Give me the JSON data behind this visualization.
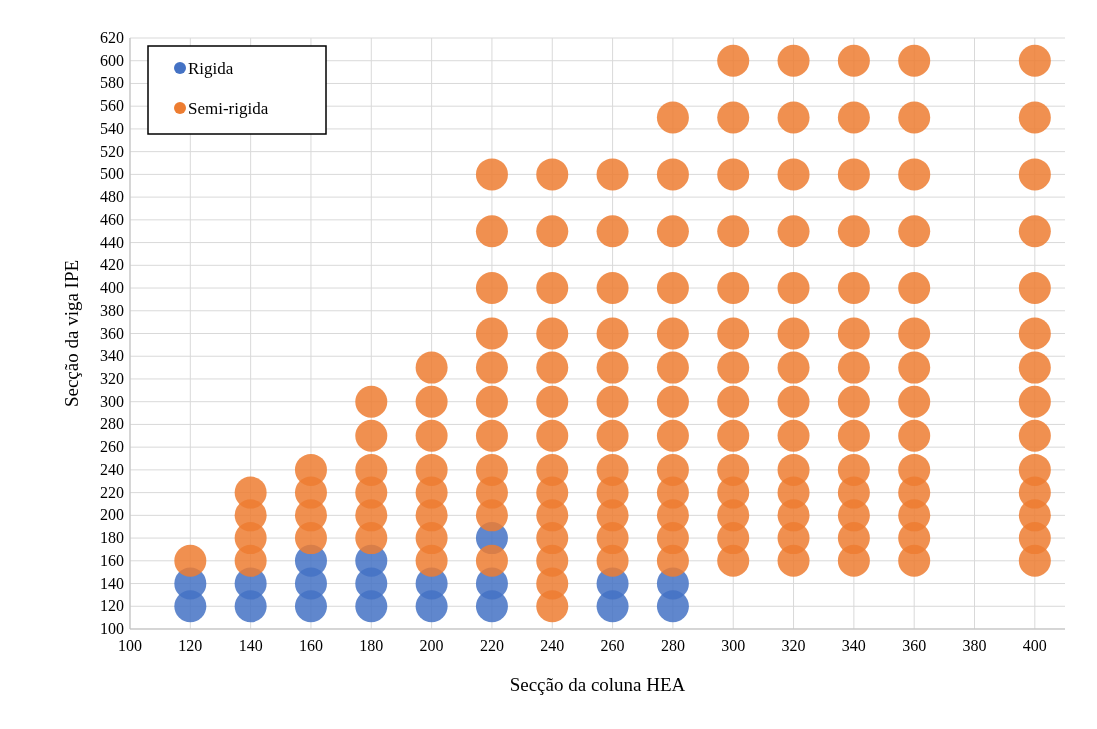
{
  "chart_data": {
    "type": "scatter",
    "xlabel": "Secção da coluna HEA",
    "ylabel": "Secção da viga IPE",
    "xlim": [
      100,
      410
    ],
    "xticks": [
      100,
      120,
      140,
      160,
      180,
      200,
      220,
      240,
      260,
      280,
      300,
      320,
      340,
      360,
      380,
      400
    ],
    "ylim": [
      100,
      620
    ],
    "yticks": [
      100,
      120,
      140,
      160,
      180,
      200,
      220,
      240,
      260,
      280,
      300,
      320,
      340,
      360,
      380,
      400,
      420,
      440,
      460,
      480,
      500,
      520,
      540,
      560,
      580,
      600,
      620
    ],
    "grid": true,
    "legend": "top left",
    "marker": "circle",
    "series": [
      {
        "name": "Rigida",
        "color": "#4472c4",
        "x": [
          120,
          120,
          140,
          140,
          160,
          160,
          160,
          180,
          180,
          180,
          200,
          200,
          220,
          220,
          220,
          260,
          260,
          280,
          280
        ],
        "values": [
          120,
          140,
          120,
          140,
          120,
          140,
          160,
          120,
          140,
          160,
          120,
          140,
          120,
          140,
          180,
          120,
          140,
          120,
          140
        ]
      },
      {
        "name": "Semi-rigida",
        "color": "#ed7d31",
        "x": [
          120,
          140,
          140,
          140,
          140,
          160,
          160,
          160,
          160,
          180,
          180,
          180,
          180,
          180,
          180,
          200,
          200,
          200,
          200,
          200,
          200,
          200,
          200,
          220,
          220,
          220,
          220,
          220,
          220,
          220,
          220,
          220,
          220,
          220,
          240,
          240,
          240,
          240,
          240,
          240,
          240,
          240,
          240,
          240,
          240,
          240,
          240,
          240,
          260,
          260,
          260,
          260,
          260,
          260,
          260,
          260,
          260,
          260,
          260,
          260,
          280,
          280,
          280,
          280,
          280,
          280,
          280,
          280,
          280,
          280,
          280,
          280,
          280,
          300,
          300,
          300,
          300,
          300,
          300,
          300,
          300,
          300,
          300,
          300,
          300,
          300,
          300,
          320,
          320,
          320,
          320,
          320,
          320,
          320,
          320,
          320,
          320,
          320,
          320,
          320,
          320,
          340,
          340,
          340,
          340,
          340,
          340,
          340,
          340,
          340,
          340,
          340,
          340,
          340,
          340,
          360,
          360,
          360,
          360,
          360,
          360,
          360,
          360,
          360,
          360,
          360,
          360,
          360,
          360,
          400,
          400,
          400,
          400,
          400,
          400,
          400,
          400,
          400,
          400,
          400,
          400,
          400,
          400
        ],
        "values": [
          160,
          160,
          180,
          200,
          220,
          180,
          200,
          220,
          240,
          180,
          200,
          220,
          240,
          270,
          300,
          160,
          180,
          200,
          220,
          240,
          270,
          300,
          330,
          160,
          200,
          220,
          240,
          270,
          300,
          330,
          360,
          400,
          450,
          500,
          120,
          140,
          160,
          180,
          200,
          220,
          240,
          270,
          300,
          330,
          360,
          400,
          450,
          500,
          160,
          180,
          200,
          220,
          240,
          270,
          300,
          330,
          360,
          400,
          450,
          500,
          160,
          180,
          200,
          220,
          240,
          270,
          300,
          330,
          360,
          400,
          450,
          500,
          550,
          160,
          180,
          200,
          220,
          240,
          270,
          300,
          330,
          360,
          400,
          450,
          500,
          550,
          600,
          160,
          180,
          200,
          220,
          240,
          270,
          300,
          330,
          360,
          400,
          450,
          500,
          550,
          600,
          160,
          180,
          200,
          220,
          240,
          270,
          300,
          330,
          360,
          400,
          450,
          500,
          550,
          600,
          160,
          180,
          200,
          220,
          240,
          270,
          300,
          330,
          360,
          400,
          450,
          500,
          550,
          600,
          160,
          180,
          200,
          220,
          240,
          270,
          300,
          330,
          360,
          400,
          450,
          500,
          550,
          600
        ]
      }
    ]
  }
}
